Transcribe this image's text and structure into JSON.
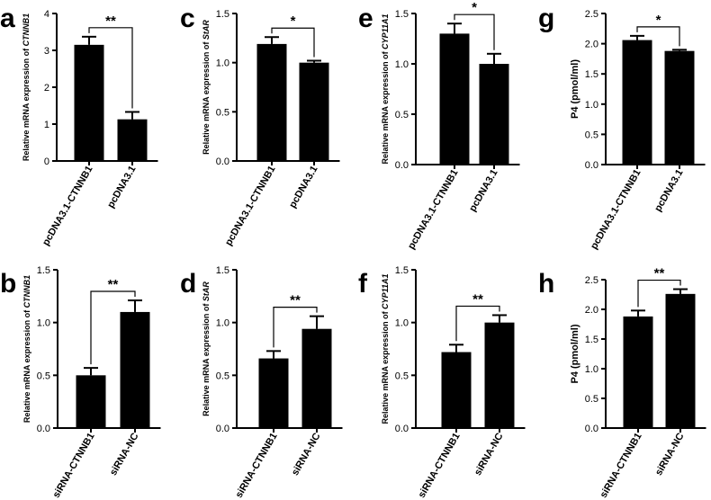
{
  "figure": {
    "panels": [
      "a",
      "b",
      "c",
      "d",
      "e",
      "f",
      "g",
      "h"
    ]
  },
  "chart_data": [
    {
      "panel": "a",
      "type": "bar",
      "ylabel_prefix": "Relative  mRNA expression of ",
      "ylabel_gene": "CTNNB1",
      "categories": [
        "pcDNA3.1-CTNNB1",
        "pcDNA3.1"
      ],
      "values": [
        3.15,
        1.13
      ],
      "errors": [
        0.22,
        0.2
      ],
      "ylim": [
        0,
        4
      ],
      "yticks": [
        "0",
        "1",
        "2",
        "3",
        "4"
      ],
      "significance": "**"
    },
    {
      "panel": "b",
      "type": "bar",
      "ylabel_prefix": "Relative  mRNA expression of ",
      "ylabel_gene": "CTNNB1",
      "categories": [
        "siRNA-CTNNB1",
        "siRNA-NC"
      ],
      "values": [
        0.5,
        1.1
      ],
      "errors": [
        0.07,
        0.11
      ],
      "ylim": [
        0,
        1.5
      ],
      "yticks": [
        "0.0",
        "0.5",
        "1.0",
        "1.5"
      ],
      "significance": "**"
    },
    {
      "panel": "c",
      "type": "bar",
      "ylabel_prefix": "Relative  mRNA expression of ",
      "ylabel_gene": "StAR",
      "categories": [
        "pcDNA3.1-CTNNB1",
        "pcDNA3.1"
      ],
      "values": [
        1.19,
        1.0
      ],
      "errors": [
        0.07,
        0.02
      ],
      "ylim": [
        0,
        1.5
      ],
      "yticks": [
        "0.0",
        "0.5",
        "1.0",
        "1.5"
      ],
      "significance": "*"
    },
    {
      "panel": "d",
      "type": "bar",
      "ylabel_prefix": "Relative  mRNA expression of ",
      "ylabel_gene": "StAR",
      "categories": [
        "siRNA-CTNNB1",
        "siRNA-NC"
      ],
      "values": [
        0.66,
        0.94
      ],
      "errors": [
        0.07,
        0.12
      ],
      "ylim": [
        0,
        1.5
      ],
      "yticks": [
        "0.0",
        "0.5",
        "1.0",
        "1.5"
      ],
      "significance": "**"
    },
    {
      "panel": "e",
      "type": "bar",
      "ylabel_prefix": "Relative  mRNA expression of ",
      "ylabel_gene": "CYP11A1",
      "categories": [
        "pcDNA3.1-CTNNB1",
        "pcDNA3.1"
      ],
      "values": [
        1.3,
        1.0
      ],
      "errors": [
        0.1,
        0.1
      ],
      "ylim": [
        0,
        1.5
      ],
      "yticks": [
        "0.0",
        "0.5",
        "1.0",
        "1.5"
      ],
      "significance": "*"
    },
    {
      "panel": "f",
      "type": "bar",
      "ylabel_prefix": "Relative  mRNA expression of ",
      "ylabel_gene": "CYP11A1",
      "categories": [
        "siRNA-CTNNB1",
        "siRNA-NC"
      ],
      "values": [
        0.72,
        1.0
      ],
      "errors": [
        0.07,
        0.07
      ],
      "ylim": [
        0,
        1.5
      ],
      "yticks": [
        "0.0",
        "0.5",
        "1.0",
        "1.5"
      ],
      "significance": "**"
    },
    {
      "panel": "g",
      "type": "bar",
      "ylabel_prefix": "P4 (pmol/ml)",
      "ylabel_gene": "",
      "categories": [
        "pcDNA3.1-CTNNB1",
        "pcDNA3.1"
      ],
      "values": [
        2.06,
        1.88
      ],
      "errors": [
        0.07,
        0.02
      ],
      "ylim": [
        0,
        2.5
      ],
      "yticks": [
        "0.0",
        "0.5",
        "1.0",
        "1.5",
        "2.0",
        "2.5"
      ],
      "significance": "*"
    },
    {
      "panel": "h",
      "type": "bar",
      "ylabel_prefix": "P4 (pmol/ml)",
      "ylabel_gene": "",
      "categories": [
        "siRNA-CTNNB1",
        "siRNA-NC"
      ],
      "values": [
        1.88,
        2.26
      ],
      "errors": [
        0.1,
        0.08
      ],
      "ylim": [
        0,
        2.5
      ],
      "yticks": [
        "0.0",
        "0.5",
        "1.0",
        "1.5",
        "2.0",
        "2.5"
      ],
      "significance": "**"
    }
  ]
}
